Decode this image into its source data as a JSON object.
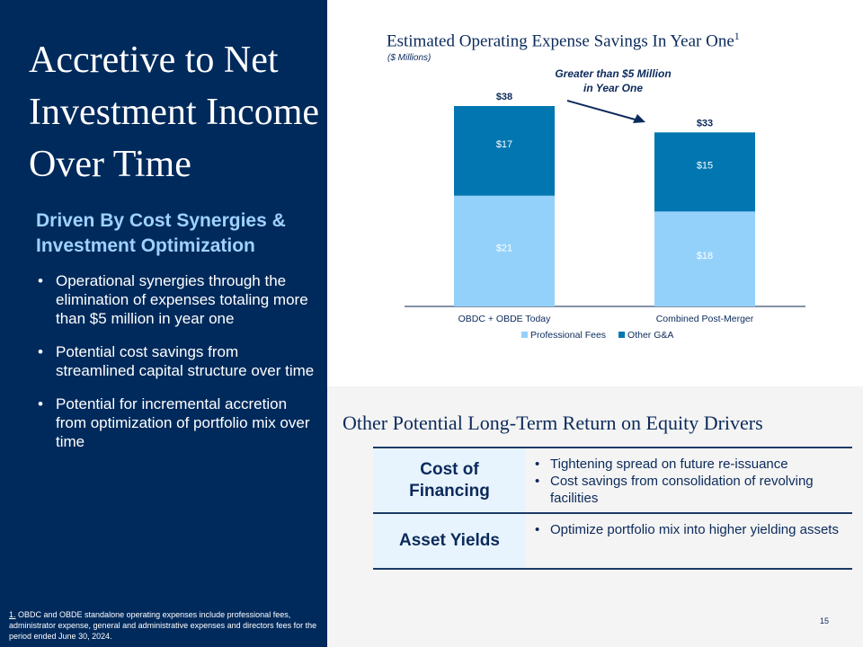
{
  "left": {
    "title": "Accretive to Net Investment Income Over Time",
    "subtitle": "Driven By Cost Synergies & Investment Optimization",
    "bullets": [
      "Operational synergies through the elimination of expenses totaling more than $5 million in year one",
      "Potential cost savings from streamlined capital structure over time",
      "Potential for incremental accretion from optimization of portfolio mix over time"
    ],
    "footnote_marker": "1.",
    "footnote": " OBDC and OBDE standalone operating expenses include professional fees, administrator expense, general and administrative expenses and directors fees for the period ended June 30, 2024."
  },
  "chart_data": {
    "type": "bar",
    "stacked": true,
    "title": "Estimated Operating Expense Savings In Year One",
    "title_superscript": "1",
    "subtitle": "($ Millions)",
    "categories": [
      "OBDC + OBDE Today",
      "Combined Post-Merger"
    ],
    "series": [
      {
        "name": "Professional Fees",
        "values": [
          21,
          18
        ],
        "labels": [
          "$21",
          "$18"
        ],
        "color": "#93d1fb"
      },
      {
        "name": "Other G&A",
        "values": [
          17,
          15
        ],
        "labels": [
          "$17",
          "$15"
        ],
        "color": "#0276b0"
      }
    ],
    "totals": [
      "$38",
      "$33"
    ],
    "annotation": "Greater than $5 Million in Year One",
    "annotation_lines": [
      "Greater than $5 Million",
      "in Year One"
    ],
    "legend_position": "bottom",
    "grid": false,
    "ylim": [
      0,
      38
    ]
  },
  "roe": {
    "title": "Other Potential Long-Term Return on Equity Drivers",
    "rows": [
      {
        "header": "Cost of Financing",
        "items": [
          "Tightening spread on future re-issuance",
          "Cost savings from consolidation of revolving facilities"
        ]
      },
      {
        "header": "Asset Yields",
        "items": [
          "Optimize portfolio mix into higher yielding assets"
        ]
      }
    ]
  },
  "page_number": "15",
  "colors": {
    "navy": "#002a5c",
    "light_blue": "#93d1fb",
    "mid_blue": "#0276b0",
    "subtitle_blue": "#9fd2ff"
  }
}
